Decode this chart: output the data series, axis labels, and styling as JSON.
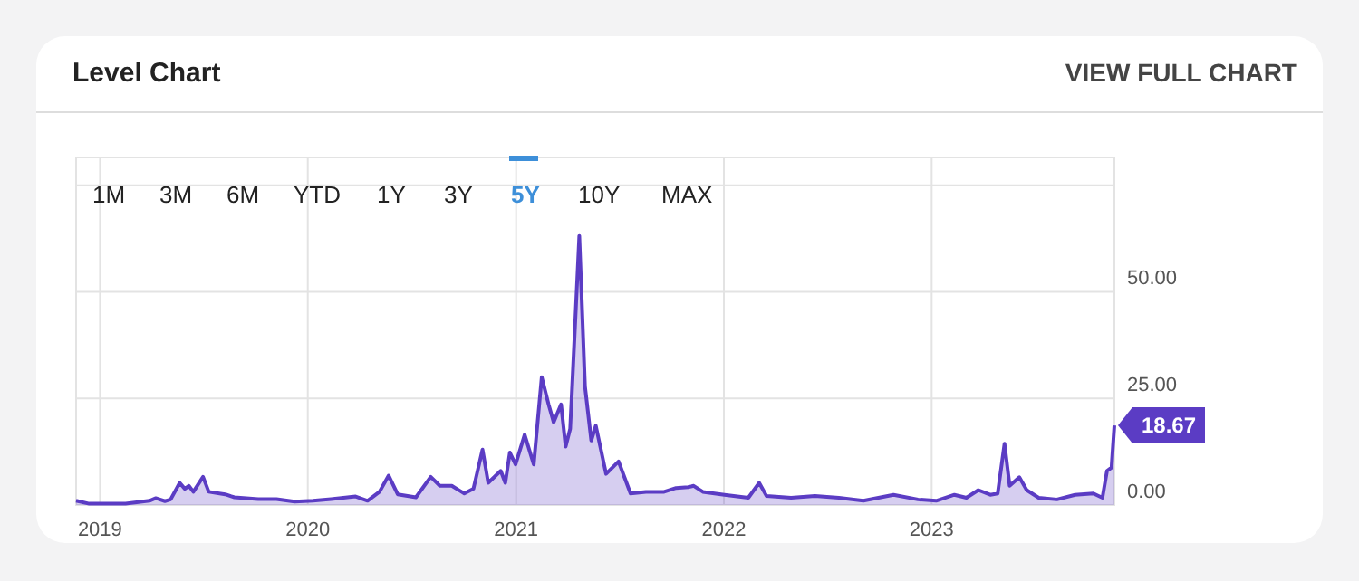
{
  "chart_data": {
    "type": "area",
    "title": "Level Chart",
    "annotations": [
      "VIEW FULL CHART",
      "1M",
      "3M",
      "6M",
      "YTD",
      "1Y",
      "3Y",
      "5Y",
      "10Y",
      "MAX",
      {
        "text": "18.67",
        "x": "2023-11-18",
        "y": 18.67
      }
    ],
    "x": [
      "2018-11-20",
      "2018-12-13",
      "2019-02-15",
      "2019-03-29",
      "2019-04-09",
      "2019-04-25",
      "2019-05-05",
      "2019-05-21",
      "2019-05-30",
      "2019-06-06",
      "2019-06-14",
      "2019-07-01",
      "2019-07-11",
      "2019-08-09",
      "2019-08-25",
      "2019-10-06",
      "2019-11-07",
      "2019-12-09",
      "2020-01-10",
      "2020-02-11",
      "2020-03-25",
      "2020-04-15",
      "2020-05-06",
      "2020-05-22",
      "2020-06-07",
      "2020-07-09",
      "2020-08-04",
      "2020-08-20",
      "2020-09-10",
      "2020-10-02",
      "2020-10-18",
      "2020-11-03",
      "2020-11-13",
      "2020-12-05",
      "2020-12-13",
      "2020-12-21",
      "2020-12-31",
      "2021-01-16",
      "2021-02-01",
      "2021-02-15",
      "2021-02-27",
      "2021-03-08",
      "2021-03-21",
      "2021-03-29",
      "2021-04-06",
      "2021-04-22",
      "2021-05-02",
      "2021-05-13",
      "2021-05-21",
      "2021-06-08",
      "2021-06-30",
      "2021-07-21",
      "2021-08-17",
      "2021-09-18",
      "2021-10-09",
      "2021-10-30",
      "2021-11-09",
      "2021-11-25",
      "2022-01-02",
      "2022-02-13",
      "2022-03-04",
      "2022-03-17",
      "2022-04-29",
      "2022-06-10",
      "2022-07-22",
      "2022-09-03",
      "2022-10-26",
      "2022-12-08",
      "2023-01-09",
      "2023-02-10",
      "2023-03-03",
      "2023-03-24",
      "2023-04-14",
      "2023-04-27",
      "2023-05-09",
      "2023-05-18",
      "2023-06-04",
      "2023-06-17",
      "2023-07-08",
      "2023-08-09",
      "2023-09-10",
      "2023-10-12",
      "2023-10-28",
      "2023-11-05",
      "2023-11-13",
      "2023-11-18"
    ],
    "series": [
      {
        "color": "#5b3cc4",
        "values": [
          1.0,
          0.3,
          0.3,
          1.0,
          1.6,
          0.9,
          1.3,
          5.2,
          3.8,
          4.5,
          3.1,
          6.6,
          3.1,
          2.5,
          1.8,
          1.4,
          1.4,
          0.8,
          1.0,
          1.4,
          2.0,
          1.0,
          3.1,
          6.9,
          2.5,
          1.8,
          6.6,
          4.5,
          4.5,
          2.7,
          3.8,
          13.0,
          5.2,
          8.0,
          5.2,
          12.3,
          9.5,
          16.5,
          9.5,
          30.0,
          23.6,
          19.4,
          23.6,
          13.7,
          17.9,
          63.1,
          27.8,
          15.1,
          18.6,
          7.3,
          10.2,
          2.7,
          3.1,
          3.1,
          4.0,
          4.2,
          4.5,
          3.1,
          2.4,
          1.7,
          5.2,
          2.1,
          1.7,
          2.1,
          1.7,
          1.0,
          2.4,
          1.3,
          1.0,
          2.4,
          1.7,
          3.5,
          2.4,
          2.7,
          14.4,
          4.5,
          6.5,
          3.5,
          1.7,
          1.3,
          2.4,
          2.7,
          1.7,
          8.0,
          8.8,
          18.67
        ]
      }
    ],
    "xlim": [
      "2018-11-20",
      "2023-11-18"
    ],
    "xticks": [
      "2019",
      "2020",
      "2021",
      "2022",
      "2023"
    ],
    "ylim": [
      0,
      81.5
    ],
    "yticks": [
      {
        "value": 0,
        "label": "0.00"
      },
      {
        "value": 25,
        "label": "25.00"
      },
      {
        "value": 50,
        "label": "50.00"
      },
      {
        "value": 75,
        "label": null
      }
    ],
    "grid": true
  }
}
